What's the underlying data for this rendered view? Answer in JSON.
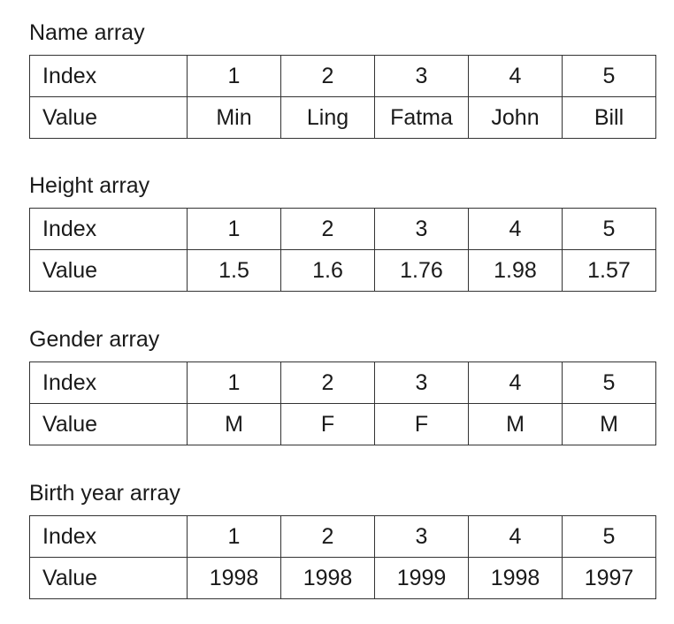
{
  "arrays": [
    {
      "title": "Name array",
      "index_label": "Index",
      "value_label": "Value",
      "indices": [
        "1",
        "2",
        "3",
        "4",
        "5"
      ],
      "values": [
        "Min",
        "Ling",
        "Fatma",
        "John",
        "Bill"
      ]
    },
    {
      "title": "Height array",
      "index_label": "Index",
      "value_label": "Value",
      "indices": [
        "1",
        "2",
        "3",
        "4",
        "5"
      ],
      "values": [
        "1.5",
        "1.6",
        "1.76",
        "1.98",
        "1.57"
      ]
    },
    {
      "title": "Gender array",
      "index_label": "Index",
      "value_label": "Value",
      "indices": [
        "1",
        "2",
        "3",
        "4",
        "5"
      ],
      "values": [
        "M",
        "F",
        "F",
        "M",
        "M"
      ]
    },
    {
      "title": "Birth year array",
      "index_label": "Index",
      "value_label": "Value",
      "indices": [
        "1",
        "2",
        "3",
        "4",
        "5"
      ],
      "values": [
        "1998",
        "1998",
        "1999",
        "1998",
        "1997"
      ]
    }
  ]
}
